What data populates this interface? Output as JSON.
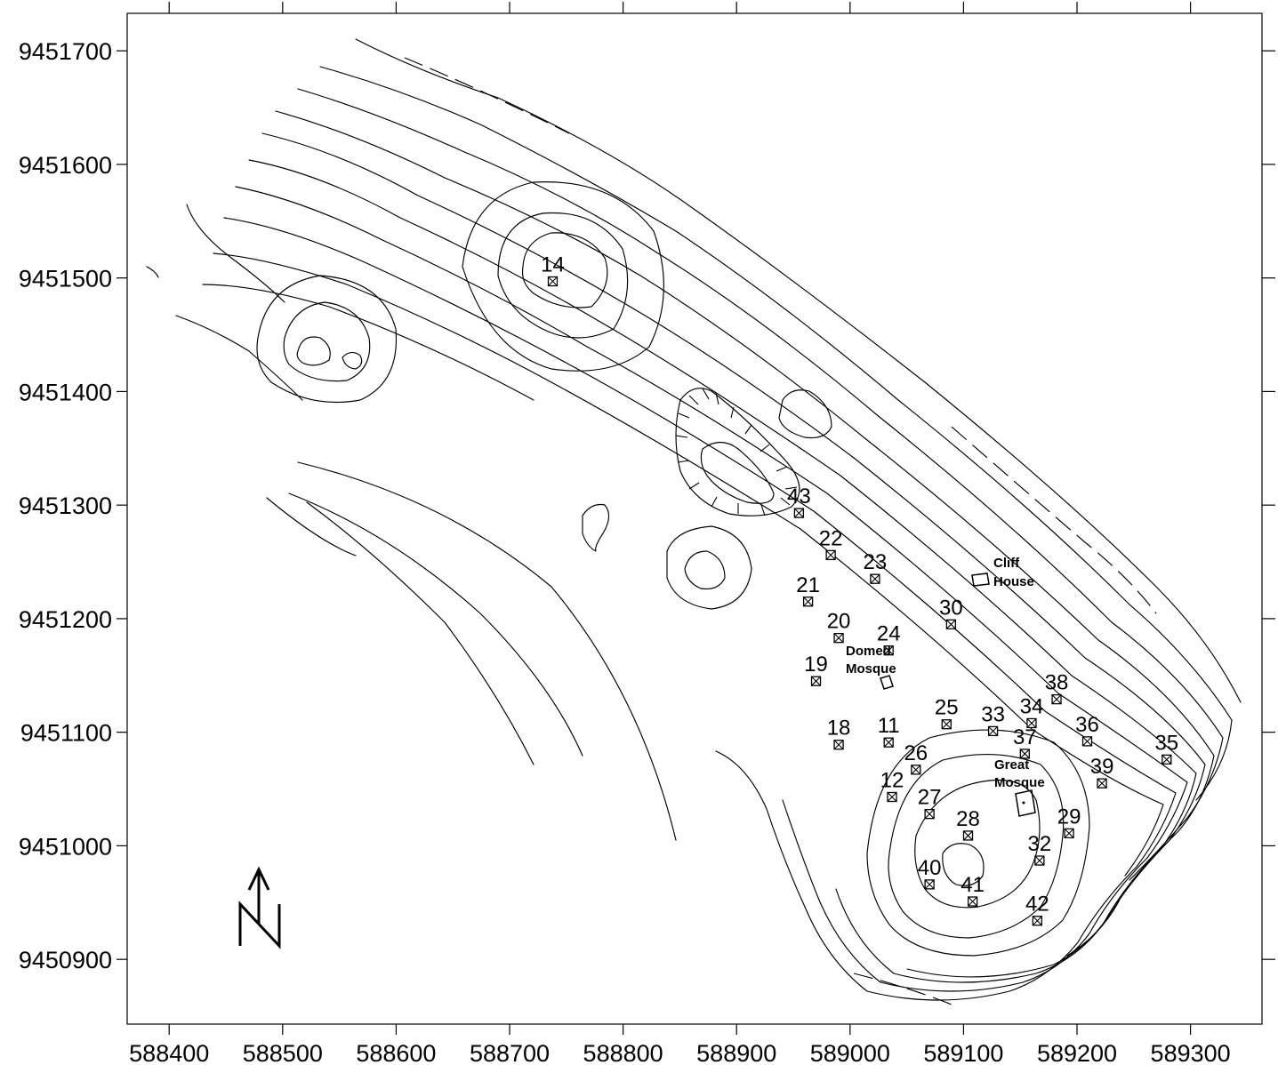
{
  "map": {
    "x_axis": {
      "range": [
        588363,
        589363
      ],
      "tick_labels": [
        "588400",
        "588500",
        "588600",
        "588700",
        "588800",
        "588900",
        "589000",
        "589100",
        "589200",
        "589300"
      ],
      "tick_values": [
        588400,
        588500,
        588600,
        588700,
        588800,
        588900,
        589000,
        589100,
        589200,
        589300
      ]
    },
    "y_axis": {
      "range": [
        9450843,
        9451733
      ],
      "tick_labels": [
        "9450900",
        "9451000",
        "9451100",
        "9451200",
        "9451300",
        "9451400",
        "9451500",
        "9451600",
        "9451700"
      ],
      "tick_values": [
        9450900,
        9451000,
        9451100,
        9451200,
        9451300,
        9451400,
        9451500,
        9451600,
        9451700
      ]
    },
    "points": [
      {
        "label": "14",
        "x": 588738,
        "y": 9451497
      },
      {
        "label": "43",
        "x": 588955,
        "y": 9451293
      },
      {
        "label": "22",
        "x": 588983,
        "y": 9451256
      },
      {
        "label": "23",
        "x": 589022,
        "y": 9451235
      },
      {
        "label": "21",
        "x": 588963,
        "y": 9451215
      },
      {
        "label": "30",
        "x": 589089,
        "y": 9451195
      },
      {
        "label": "20",
        "x": 588990,
        "y": 9451183
      },
      {
        "label": "24",
        "x": 589034,
        "y": 9451172
      },
      {
        "label": "19",
        "x": 588970,
        "y": 9451145
      },
      {
        "label": "38",
        "x": 589182,
        "y": 9451129
      },
      {
        "label": "25",
        "x": 589085,
        "y": 9451107
      },
      {
        "label": "33",
        "x": 589126,
        "y": 9451101
      },
      {
        "label": "34",
        "x": 589160,
        "y": 9451108
      },
      {
        "label": "36",
        "x": 589209,
        "y": 9451092
      },
      {
        "label": "35",
        "x": 589279,
        "y": 9451076
      },
      {
        "label": "18",
        "x": 588990,
        "y": 9451089
      },
      {
        "label": "11",
        "x": 589034,
        "y": 9451091
      },
      {
        "label": "37",
        "x": 589154,
        "y": 9451081
      },
      {
        "label": "26",
        "x": 589058,
        "y": 9451067
      },
      {
        "label": "39",
        "x": 589222,
        "y": 9451055
      },
      {
        "label": "12",
        "x": 589037,
        "y": 9451043
      },
      {
        "label": "27",
        "x": 589070,
        "y": 9451028
      },
      {
        "label": "28",
        "x": 589104,
        "y": 9451009
      },
      {
        "label": "29",
        "x": 589193,
        "y": 9451011
      },
      {
        "label": "32",
        "x": 589167,
        "y": 9450987
      },
      {
        "label": "40",
        "x": 589070,
        "y": 9450966
      },
      {
        "label": "41",
        "x": 589108,
        "y": 9450951
      },
      {
        "label": "42",
        "x": 589165,
        "y": 9450934
      }
    ],
    "buildings": [
      {
        "name_line1": "Cliff",
        "name_line2": "House"
      },
      {
        "name_line1": "Domed",
        "name_line2": "Mosque"
      },
      {
        "name_line1": "Great",
        "name_line2": "Mosque"
      }
    ],
    "north_arrow_letter": "N"
  }
}
